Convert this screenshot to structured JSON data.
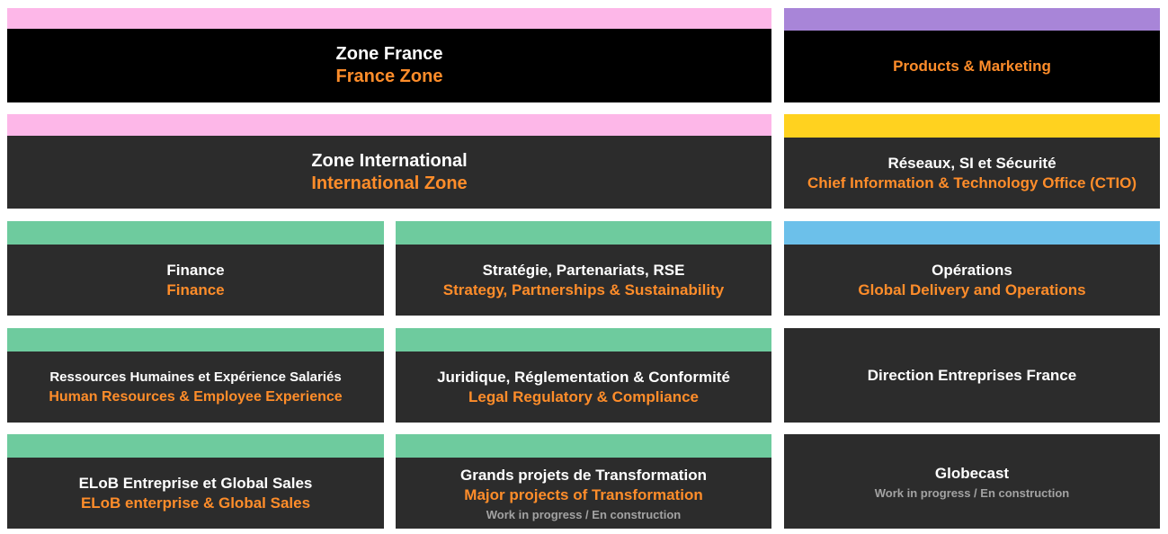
{
  "tiles": [
    {
      "id": "zone-france",
      "fr": "Zone France",
      "en": "France Zone",
      "accent": "#fdb7e8",
      "bg": "#000000"
    },
    {
      "id": "products-marketing",
      "en": "Products & Marketing",
      "accent": "#a885d8",
      "bg": "#000000"
    },
    {
      "id": "zone-international",
      "fr": "Zone International",
      "en": "International Zone",
      "accent": "#fdb7e8",
      "bg": "#2c2c2c"
    },
    {
      "id": "ctio",
      "fr": "Réseaux, SI et Sécurité",
      "en": "Chief Information & Technology Office (CTIO)",
      "accent": "#ffd21f",
      "bg": "#2c2c2c"
    },
    {
      "id": "finance",
      "fr": "Finance",
      "en": "Finance",
      "accent": "#6ecb9e",
      "bg": "#2c2c2c"
    },
    {
      "id": "strategie",
      "fr": "Stratégie, Partenariats, RSE",
      "en": "Strategy, Partnerships & Sustainability",
      "accent": "#6ecb9e",
      "bg": "#2c2c2c"
    },
    {
      "id": "operations",
      "fr": "Opérations",
      "en": "Global Delivery and Operations",
      "accent": "#6cc0ea",
      "bg": "#2c2c2c"
    },
    {
      "id": "rh",
      "fr": "Ressources Humaines et Expérience Salariés",
      "en": "Human Resources & Employee Experience",
      "accent": "#6ecb9e",
      "bg": "#2c2c2c"
    },
    {
      "id": "juridique",
      "fr": "Juridique, Réglementation & Conformité",
      "en": "Legal Regulatory & Compliance",
      "accent": "#6ecb9e",
      "bg": "#2c2c2c"
    },
    {
      "id": "def",
      "fr": "Direction Entreprises France",
      "bg": "#2c2c2c"
    },
    {
      "id": "elob",
      "fr": "ELoB Entreprise et Global Sales",
      "en": "ELoB enterprise & Global Sales",
      "accent": "#6ecb9e",
      "bg": "#2c2c2c"
    },
    {
      "id": "transformation",
      "fr": "Grands projets de Transformation",
      "en": "Major projects of Transformation",
      "wip": "Work in progress / En construction",
      "accent": "#6ecb9e",
      "bg": "#2c2c2c"
    },
    {
      "id": "globecast",
      "fr": "Globecast",
      "wip": "Work in progress / En construction",
      "bg": "#2c2c2c"
    }
  ]
}
